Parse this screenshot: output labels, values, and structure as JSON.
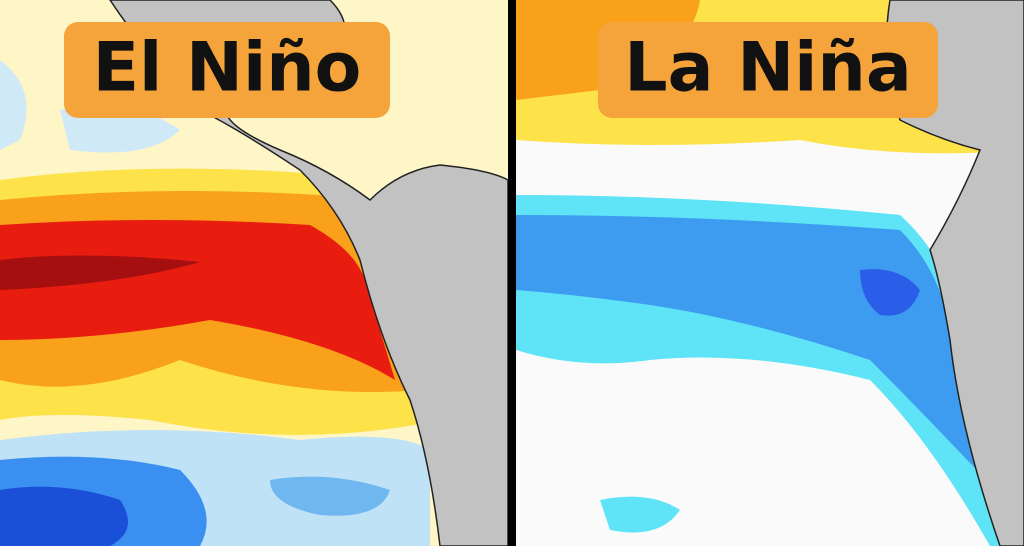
{
  "panels": [
    {
      "label": "El Niño"
    },
    {
      "label": "La Niña"
    }
  ]
}
